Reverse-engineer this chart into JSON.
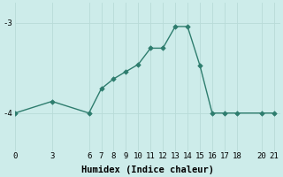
{
  "xlabel": "Humidex (Indice chaleur)",
  "ylabel": "",
  "bg_color": "#cdecea",
  "line_color": "#2e7d6e",
  "marker_color": "#2e7d6e",
  "grid_color": "#b8dbd8",
  "x_data": [
    0,
    3,
    6,
    7,
    8,
    9,
    10,
    11,
    12,
    13,
    14,
    15,
    16,
    17,
    18,
    20,
    21
  ],
  "y_data": [
    -4.0,
    -3.87,
    -4.0,
    -3.73,
    -3.62,
    -3.54,
    -3.46,
    -3.28,
    -3.28,
    -3.04,
    -3.04,
    -3.47,
    -4.0,
    -4.0,
    -4.0,
    -4.0,
    -4.0
  ],
  "xtick_labels": [
    "0",
    "3",
    "6",
    "7",
    "8",
    "9",
    "10",
    "11",
    "12",
    "13",
    "14",
    "15",
    "16",
    "17",
    "18",
    "20",
    "21"
  ],
  "xtick_pos": [
    0,
    3,
    6,
    7,
    8,
    9,
    10,
    11,
    12,
    13,
    14,
    15,
    16,
    17,
    18,
    20,
    21
  ],
  "yticks": [
    -4,
    -3
  ],
  "ytick_labels": [
    "-4",
    "-3"
  ],
  "xlim": [
    0,
    21.5
  ],
  "ylim": [
    -4.42,
    -2.78
  ],
  "tick_fontsize": 6.5,
  "xlabel_fontsize": 7.5,
  "lw": 1.0,
  "markersize": 2.8
}
